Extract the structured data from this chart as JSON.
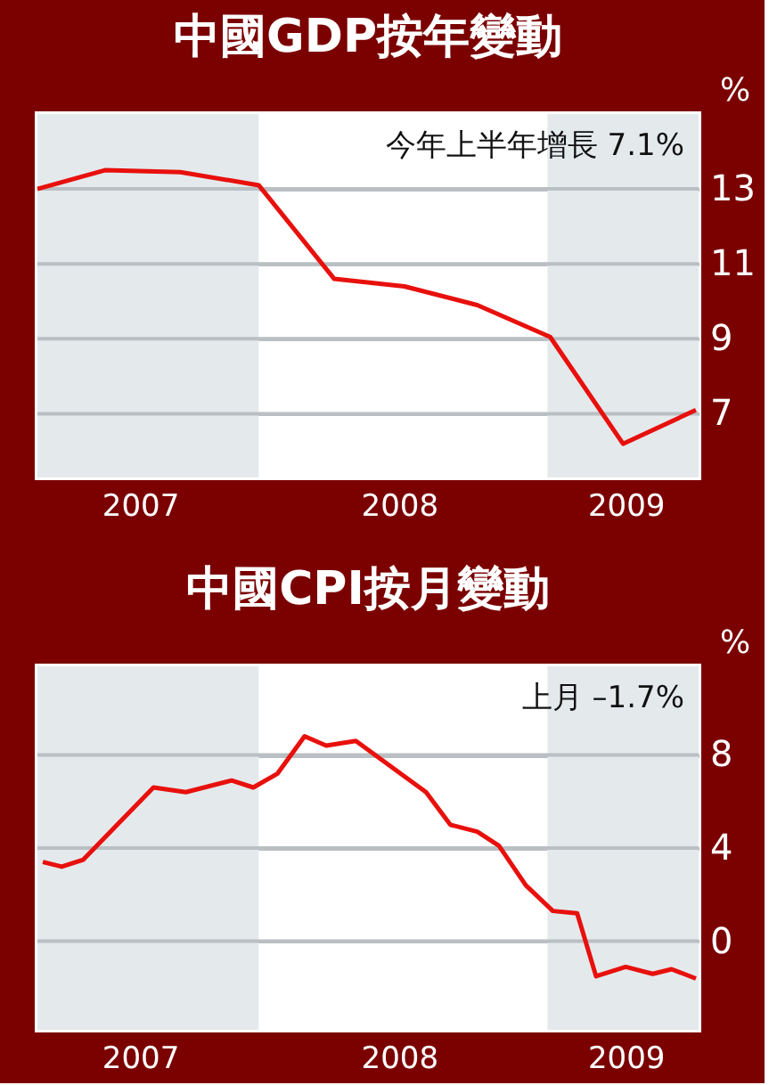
{
  "chart_data": [
    {
      "type": "line",
      "title": "中國GDP按年變動",
      "ylabel": "%",
      "x": [
        2006.98,
        2007.23,
        2007.51,
        2007.8,
        2008.08,
        2008.34,
        2008.61,
        2008.88,
        2009.15,
        2009.42
      ],
      "series": [
        {
          "color": "#e8100c",
          "values": [
            13.0,
            13.5,
            13.45,
            13.1,
            10.6,
            10.4,
            9.9,
            9.05,
            6.2,
            7.1
          ]
        }
      ],
      "xlim": [
        2006.98,
        2009.43
      ],
      "xticks": [
        {
          "value": 2007.36,
          "label": "2007"
        },
        {
          "value": 2008.32,
          "label": "2008"
        },
        {
          "value": 2009.16,
          "label": "2009"
        }
      ],
      "ylim": [
        5.3,
        15.0
      ],
      "yticks": [
        7,
        9,
        11,
        13
      ],
      "grid": "y",
      "bands": [
        {
          "axis": "x",
          "from": 2006.98,
          "to": 2007.8,
          "color": "#e4e9ec"
        },
        {
          "axis": "x",
          "from": 2008.87,
          "to": 2009.43,
          "color": "#e4e9ec"
        }
      ],
      "annotations": [
        "今年上半年增長 7.1%"
      ]
    },
    {
      "type": "line",
      "title": "中國CPI按月變動",
      "ylabel": "%",
      "x": [
        2007.0,
        2007.07,
        2007.15,
        2007.41,
        2007.53,
        2007.7,
        2007.78,
        2007.87,
        2007.97,
        2008.05,
        2008.16,
        2008.42,
        2008.51,
        2008.61,
        2008.69,
        2008.79,
        2008.89,
        2008.98,
        2009.05,
        2009.16,
        2009.26,
        2009.33,
        2009.42
      ],
      "series": [
        {
          "color": "#e8100c",
          "values": [
            3.4,
            3.2,
            3.5,
            6.6,
            6.4,
            6.9,
            6.6,
            7.2,
            8.8,
            8.4,
            8.6,
            6.4,
            5.0,
            4.7,
            4.1,
            2.4,
            1.3,
            1.2,
            -1.5,
            -1.1,
            -1.4,
            -1.2,
            -1.6
          ]
        }
      ],
      "xlim": [
        2006.98,
        2009.43
      ],
      "xticks": [
        {
          "value": 2007.36,
          "label": "2007"
        },
        {
          "value": 2008.32,
          "label": "2008"
        },
        {
          "value": 2009.16,
          "label": "2009"
        }
      ],
      "ylim": [
        -3.8,
        11.8
      ],
      "yticks": [
        0,
        4,
        8
      ],
      "grid": "y",
      "bands": [
        {
          "axis": "x",
          "from": 2006.98,
          "to": 2007.8,
          "color": "#e4e9ec"
        },
        {
          "axis": "x",
          "from": 2008.87,
          "to": 2009.43,
          "color": "#e4e9ec"
        }
      ],
      "annotations": [
        "上月 –1.7%"
      ]
    }
  ]
}
